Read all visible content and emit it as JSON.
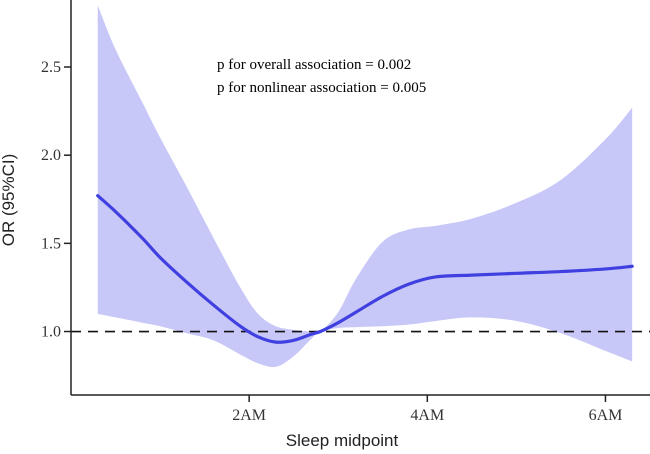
{
  "chart_data": {
    "type": "line",
    "xlabel": "Sleep midpoint",
    "ylabel": "OR (95%CI)",
    "xlim": [
      0,
      6.5
    ],
    "ylim": [
      0.64,
      2.88
    ],
    "x_ticks": [
      {
        "value": 2,
        "label": "2AM"
      },
      {
        "value": 4,
        "label": "4AM"
      },
      {
        "value": 6,
        "label": "6AM"
      }
    ],
    "y_ticks": [
      {
        "value": 1.0,
        "label": "1.0"
      },
      {
        "value": 1.5,
        "label": "1.5"
      },
      {
        "value": 2.0,
        "label": "2.0"
      },
      {
        "value": 2.5,
        "label": "2.5"
      }
    ],
    "reference_line": {
      "y": 1.0,
      "style": "dashed"
    },
    "annotations": [
      "p for overall association = 0.002",
      "p for nonlinear association = 0.005"
    ],
    "series": [
      {
        "name": "OR",
        "color": "#4040e0",
        "x": [
          0.3,
          0.5,
          0.8,
          1.0,
          1.3,
          1.6,
          1.9,
          2.1,
          2.3,
          2.5,
          2.7,
          2.8,
          3.0,
          3.2,
          3.5,
          3.8,
          4.1,
          4.5,
          5.0,
          5.5,
          6.0,
          6.3
        ],
        "y": [
          1.77,
          1.68,
          1.53,
          1.42,
          1.28,
          1.15,
          1.03,
          0.97,
          0.94,
          0.95,
          0.985,
          1.0,
          1.05,
          1.11,
          1.2,
          1.27,
          1.31,
          1.32,
          1.33,
          1.34,
          1.355,
          1.37
        ]
      }
    ],
    "confidence_band": {
      "name": "95% CI",
      "color": "#c8c8f8",
      "x": [
        0.3,
        0.5,
        0.8,
        1.0,
        1.3,
        1.6,
        1.9,
        2.1,
        2.3,
        2.5,
        2.7,
        2.8,
        3.0,
        3.2,
        3.5,
        3.8,
        4.1,
        4.5,
        5.0,
        5.5,
        6.0,
        6.3
      ],
      "lower": [
        1.1,
        1.08,
        1.05,
        1.03,
        0.99,
        0.95,
        0.87,
        0.82,
        0.8,
        0.86,
        0.96,
        1.0,
        1.02,
        1.025,
        1.03,
        1.04,
        1.06,
        1.08,
        1.06,
        0.99,
        0.89,
        0.83
      ],
      "upper": [
        2.85,
        2.6,
        2.3,
        2.1,
        1.82,
        1.53,
        1.25,
        1.1,
        1.03,
        1.01,
        1.0,
        1.0,
        1.11,
        1.3,
        1.51,
        1.58,
        1.6,
        1.64,
        1.73,
        1.86,
        2.09,
        2.27
      ]
    }
  }
}
